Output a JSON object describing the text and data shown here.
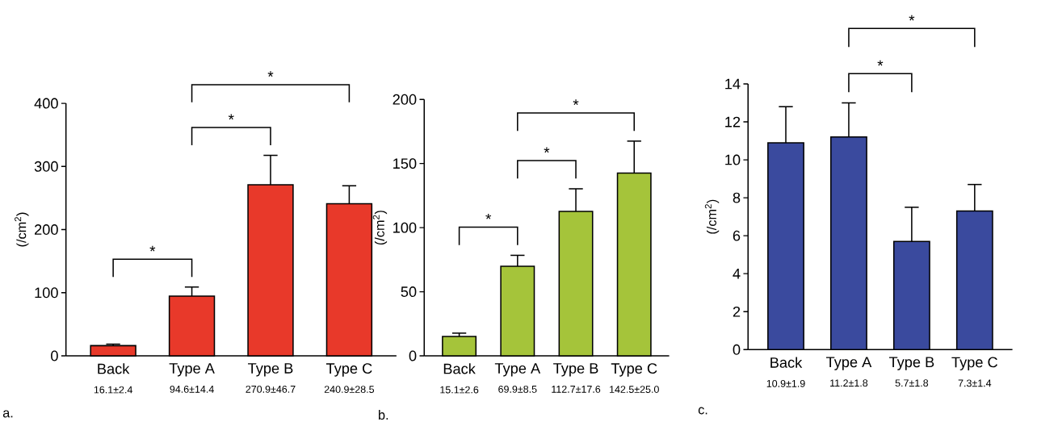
{
  "chart_data": [
    {
      "type": "bar",
      "categories": [
        "Back",
        "Type A",
        "Type B",
        "Type C"
      ],
      "values": [
        16.1,
        94.6,
        270.9,
        240.9
      ],
      "errors": [
        2.4,
        14.4,
        46.7,
        28.5
      ],
      "value_labels": [
        "16.1±2.4",
        "94.6±14.4",
        "270.9±46.7",
        "240.9±28.5"
      ],
      "color": "#e8392a",
      "ylabel": "(/cm$^{2}$)",
      "ylim": [
        0,
        400
      ],
      "yticks": [
        0,
        100,
        200,
        300,
        400
      ],
      "grid": false,
      "annotations": [
        "*",
        "*",
        "*",
        "a."
      ]
    },
    {
      "type": "bar",
      "categories": [
        "Back",
        "Type A",
        "Type B",
        "Type C"
      ],
      "values": [
        15.1,
        69.9,
        112.7,
        142.5
      ],
      "errors": [
        2.6,
        8.5,
        17.6,
        25.0
      ],
      "value_labels": [
        "15.1±2.6",
        "69.9±8.5",
        "112.7±17.6",
        "142.5±25.0"
      ],
      "color": "#a5c43a",
      "ylabel": "(/cm$^{2}$)",
      "ylim": [
        0,
        200
      ],
      "yticks": [
        0,
        50,
        100,
        150,
        200
      ],
      "grid": false,
      "annotations": [
        "*",
        "*",
        "*",
        "b."
      ]
    },
    {
      "type": "bar",
      "categories": [
        "Back",
        "Type A",
        "Type B",
        "Type C"
      ],
      "values": [
        10.9,
        11.2,
        5.7,
        7.3
      ],
      "errors": [
        1.9,
        1.8,
        1.8,
        1.4
      ],
      "value_labels": [
        "10.9±1.9",
        "11.2±1.8",
        "5.7±1.8",
        "7.3±1.4"
      ],
      "color": "#3a4a9e",
      "ylabel": "(/cm$^{2}$)",
      "ylim": [
        0,
        14
      ],
      "yticks": [
        0,
        2,
        4,
        6,
        8,
        10,
        12,
        14
      ],
      "grid": false,
      "annotations": [
        "*",
        "*",
        "c."
      ]
    }
  ]
}
